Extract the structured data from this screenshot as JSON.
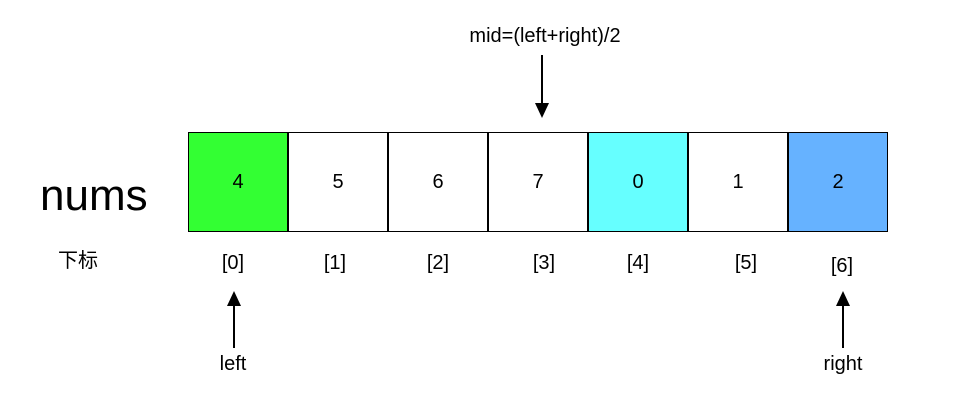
{
  "array": {
    "name": "nums",
    "index_caption": "下标",
    "cells": [
      {
        "value": "4",
        "index": "[0]",
        "fill": "#33ff33"
      },
      {
        "value": "5",
        "index": "[1]",
        "fill": "#ffffff"
      },
      {
        "value": "6",
        "index": "[2]",
        "fill": "#ffffff"
      },
      {
        "value": "7",
        "index": "[3]",
        "fill": "#ffffff"
      },
      {
        "value": "0",
        "index": "[4]",
        "fill": "#66ffff"
      },
      {
        "value": "1",
        "index": "[5]",
        "fill": "#ffffff"
      },
      {
        "value": "2",
        "index": "[6]",
        "fill": "#66b2ff"
      }
    ]
  },
  "pointers": {
    "mid": {
      "label": "mid=(left+right)/2",
      "target_index": 3
    },
    "left": {
      "label": "left",
      "target_index": 0
    },
    "right": {
      "label": "right",
      "target_index": 6
    }
  }
}
